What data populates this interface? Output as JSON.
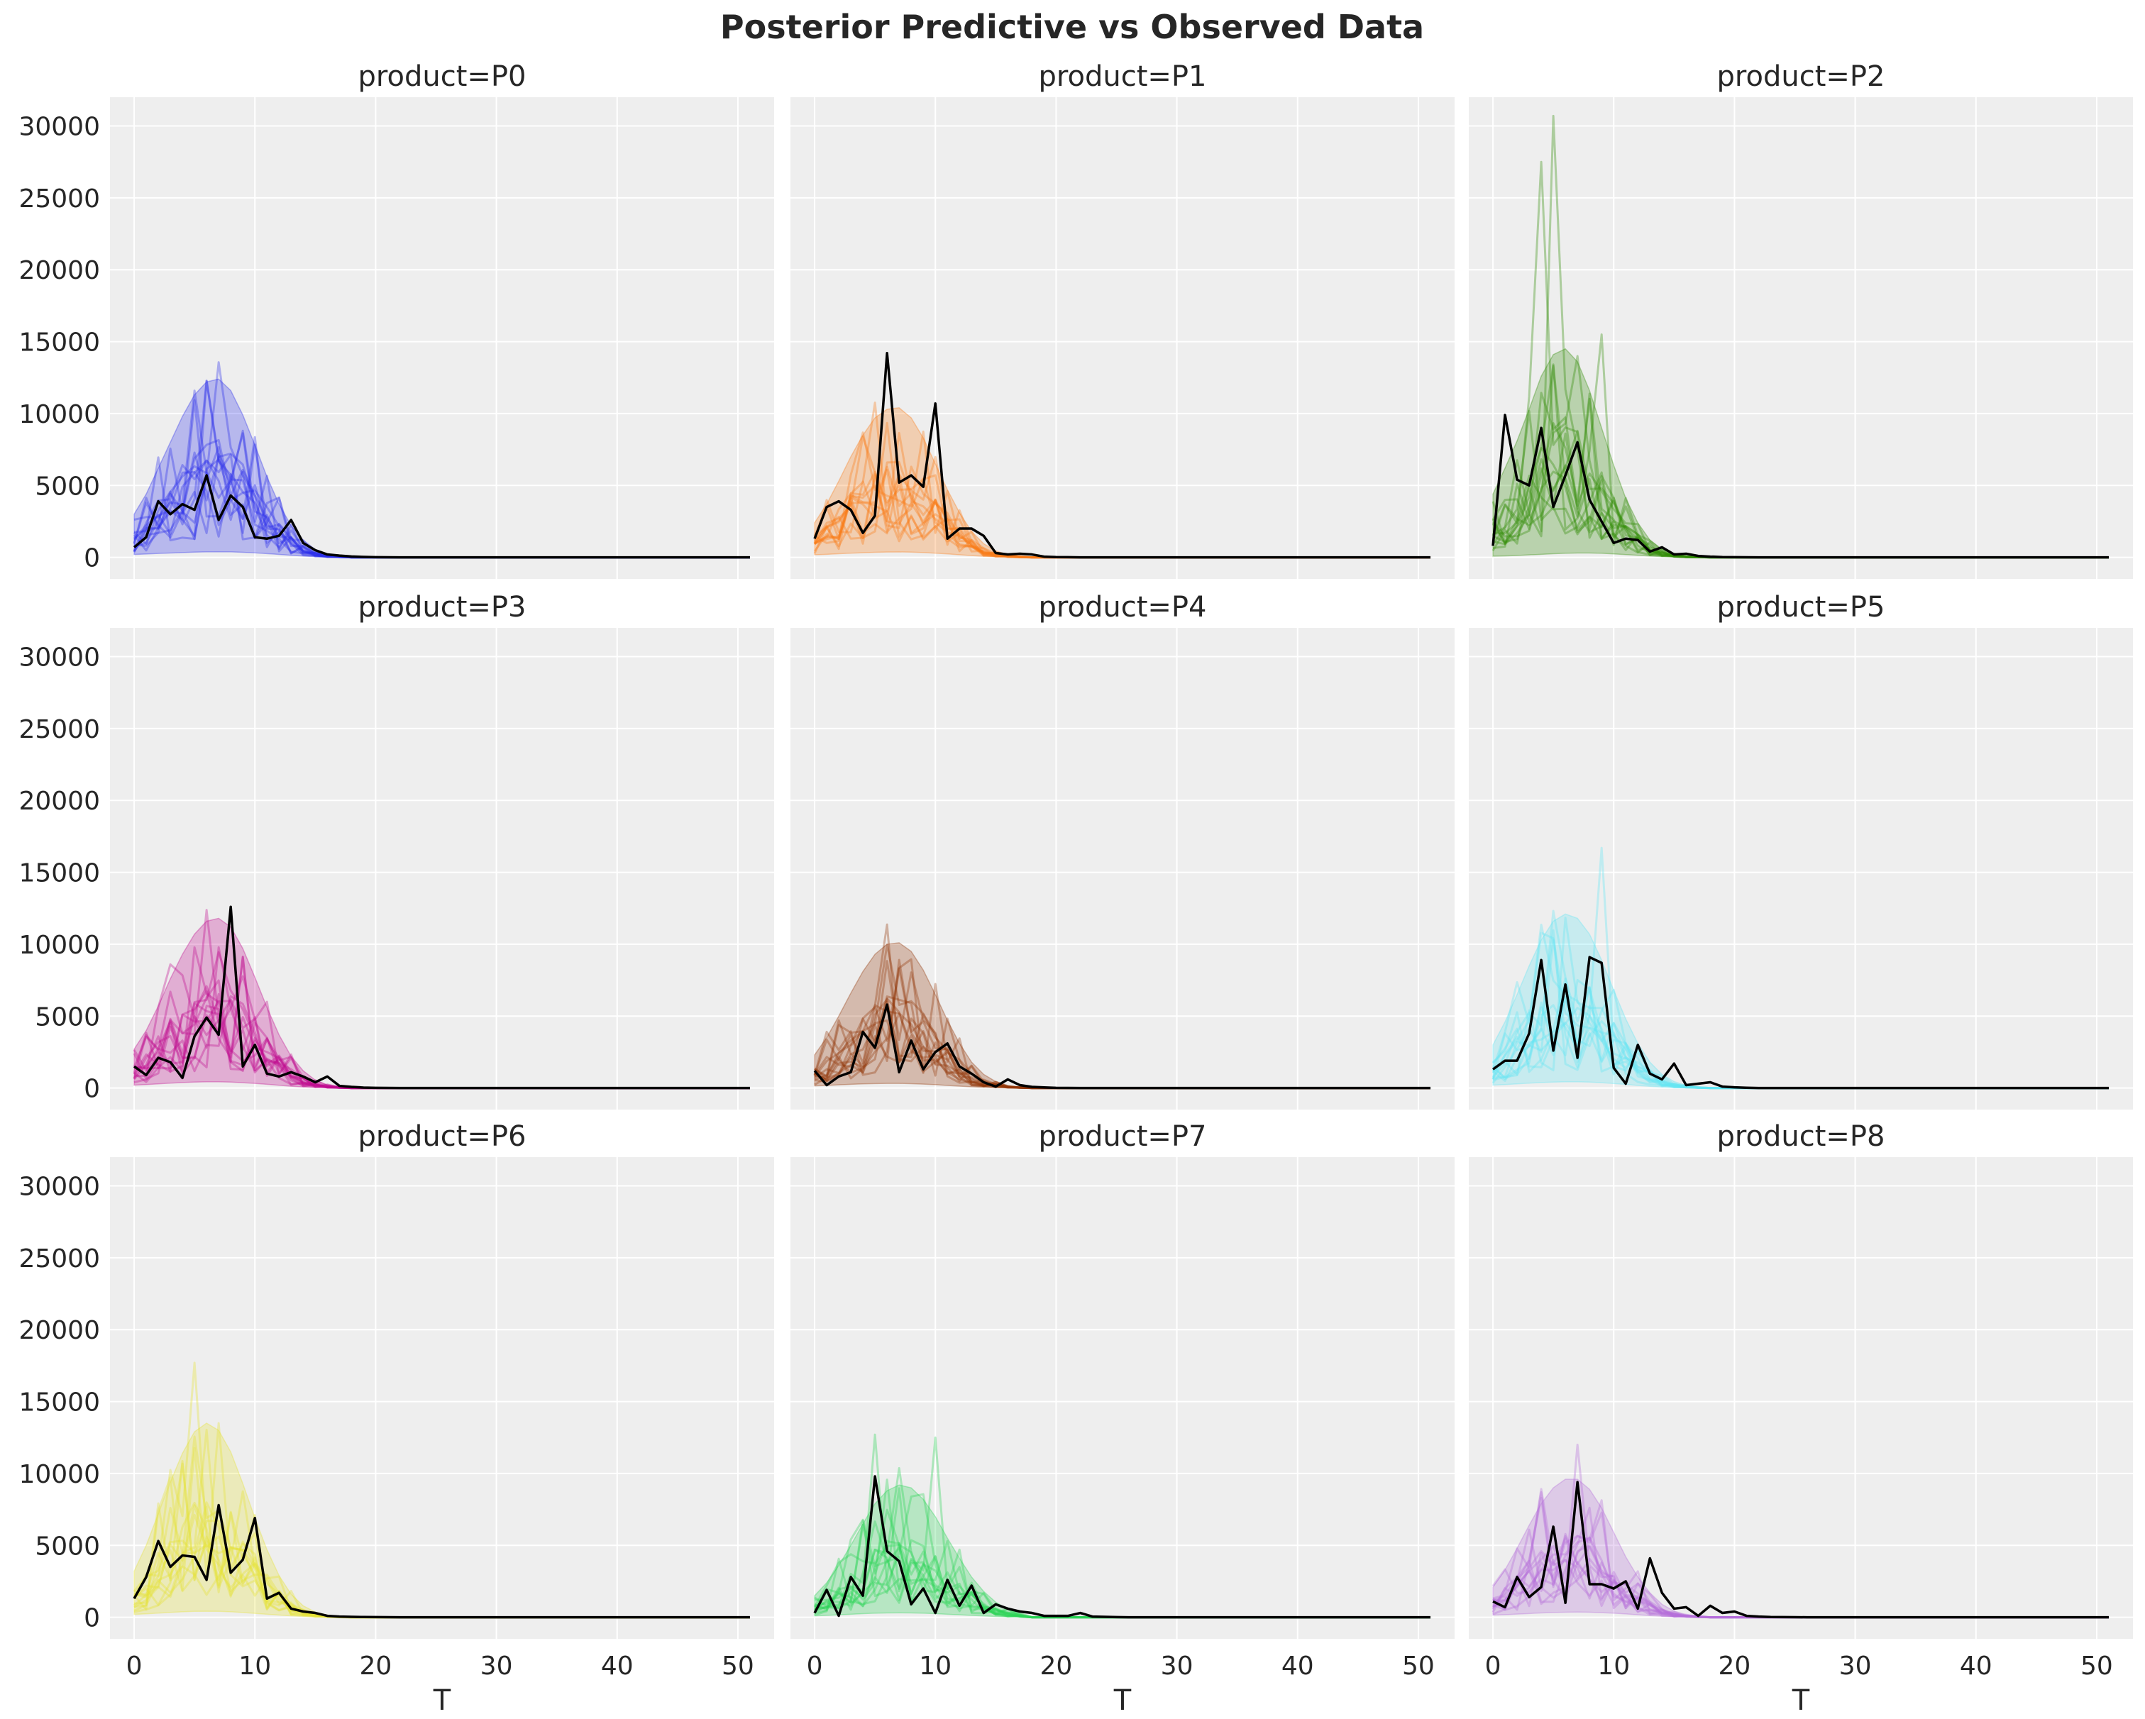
{
  "figure": {
    "title": "Posterior Predictive vs Observed Data",
    "background": "#ffffff",
    "panel_background": "#eeeeee",
    "grid_color": "#ffffff"
  },
  "chart_data": {
    "type": "line",
    "layout": "3x3 facets, shared axes",
    "xlabel": "T",
    "ylabel": "",
    "xlim": [
      -2,
      53
    ],
    "ylim": [
      -1500,
      32000
    ],
    "x_ticks": [
      0,
      10,
      20,
      30,
      40,
      50
    ],
    "y_ticks": [
      0,
      5000,
      10000,
      15000,
      20000,
      25000,
      30000
    ],
    "grid": true,
    "observed_line_color": "#000000",
    "panels": [
      {
        "title": "product=P0",
        "color": "#2a2eec",
        "band_lower": [
          200,
          230,
          270,
          300,
          330,
          360,
          380,
          390,
          380,
          350,
          310,
          260,
          200,
          140,
          90,
          50,
          25,
          10
        ],
        "band_upper": [
          3000,
          4400,
          6200,
          8000,
          9800,
          11300,
          12200,
          12400,
          11600,
          9900,
          7800,
          5600,
          3700,
          2200,
          1200,
          550,
          220,
          80
        ],
        "band_mid": [
          1200,
          1850,
          2600,
          3400,
          4200,
          4850,
          5250,
          5300,
          5000,
          4300,
          3400,
          2450,
          1600,
          960,
          520,
          250,
          100,
          40
        ],
        "observed": [
          700,
          1400,
          3900,
          3000,
          3700,
          3300,
          5700,
          2600,
          4300,
          3500,
          1400,
          1300,
          1500,
          2600,
          1000,
          500,
          200,
          120,
          60,
          30,
          10,
          5
        ]
      },
      {
        "title": "product=P1",
        "color": "#fa7c17",
        "band_lower": [
          180,
          210,
          250,
          290,
          320,
          350,
          370,
          375,
          360,
          330,
          290,
          240,
          180,
          120,
          75,
          40,
          18,
          8
        ],
        "band_upper": [
          2400,
          3700,
          5300,
          7000,
          8500,
          9700,
          10300,
          10400,
          9700,
          8300,
          6500,
          4700,
          3100,
          1800,
          950,
          450,
          180,
          70
        ],
        "band_mid": [
          1000,
          1550,
          2200,
          2900,
          3500,
          4000,
          4300,
          4350,
          4100,
          3550,
          2850,
          2050,
          1350,
          800,
          420,
          200,
          80,
          30
        ],
        "observed": [
          1300,
          3500,
          3900,
          3300,
          1700,
          2900,
          14200,
          5200,
          5700,
          4900,
          10700,
          1300,
          2000,
          2000,
          1500,
          300,
          200,
          250,
          200,
          50,
          20,
          10
        ]
      },
      {
        "title": "product=P2",
        "color": "#328c06",
        "band_lower": [
          80,
          100,
          130,
          170,
          210,
          250,
          280,
          300,
          300,
          280,
          240,
          190,
          140,
          90,
          50,
          25,
          10,
          5
        ],
        "band_upper": [
          4400,
          6200,
          8100,
          10300,
          12600,
          14100,
          14500,
          13600,
          11600,
          9000,
          6400,
          4100,
          2400,
          1200,
          560,
          230,
          80,
          30
        ],
        "band_mid": [
          1800,
          2600,
          3500,
          4500,
          5500,
          6100,
          6300,
          5900,
          5000,
          3900,
          2800,
          1800,
          1050,
          550,
          260,
          110,
          40,
          15
        ],
        "spikes": [
          [
            4,
            27500
          ],
          [
            5,
            30700
          ],
          [
            9,
            15500
          ],
          [
            7,
            14000
          ]
        ],
        "observed": [
          800,
          9900,
          5400,
          5000,
          9000,
          3500,
          5700,
          8000,
          4000,
          2500,
          1000,
          1300,
          1200,
          400,
          700,
          200,
          250,
          100,
          50,
          20,
          10,
          5
        ]
      },
      {
        "title": "product=P3",
        "color": "#c10c90",
        "band_lower": [
          200,
          240,
          290,
          340,
          380,
          410,
          430,
          430,
          410,
          370,
          320,
          260,
          190,
          120,
          70,
          35,
          15,
          6
        ],
        "band_upper": [
          2700,
          4000,
          5700,
          7600,
          9300,
          10700,
          11600,
          11800,
          11200,
          9700,
          7700,
          5600,
          3700,
          2200,
          1200,
          550,
          220,
          80
        ],
        "band_mid": [
          1100,
          1650,
          2350,
          3150,
          3850,
          4450,
          4800,
          4900,
          4650,
          4000,
          3200,
          2300,
          1500,
          900,
          480,
          220,
          90,
          30
        ],
        "observed": [
          1500,
          900,
          2100,
          1800,
          700,
          3600,
          4900,
          3700,
          12600,
          1500,
          3000,
          1000,
          800,
          1100,
          800,
          400,
          800,
          150,
          80,
          30,
          10,
          5
        ]
      },
      {
        "title": "product=P4",
        "color": "#933708",
        "band_lower": [
          150,
          180,
          220,
          260,
          290,
          310,
          320,
          320,
          300,
          270,
          230,
          180,
          130,
          85,
          50,
          25,
          10,
          4
        ],
        "band_upper": [
          2300,
          3500,
          5000,
          6600,
          8100,
          9300,
          10000,
          10100,
          9500,
          8200,
          6500,
          4700,
          3100,
          1800,
          950,
          450,
          180,
          70
        ],
        "band_mid": [
          900,
          1400,
          2000,
          2700,
          3300,
          3850,
          4150,
          4200,
          3950,
          3400,
          2700,
          1950,
          1300,
          750,
          400,
          190,
          75,
          30
        ],
        "observed": [
          1200,
          200,
          800,
          1100,
          3900,
          2800,
          5800,
          1100,
          3300,
          1300,
          2500,
          3100,
          1500,
          1000,
          400,
          100,
          600,
          200,
          80,
          40,
          10,
          5
        ]
      },
      {
        "title": "product=P5",
        "color": "#65e5f3",
        "band_lower": [
          200,
          240,
          290,
          340,
          380,
          410,
          430,
          430,
          410,
          370,
          310,
          250,
          180,
          115,
          65,
          32,
          13,
          5
        ],
        "band_upper": [
          3000,
          4600,
          6500,
          8500,
          10300,
          11600,
          12100,
          11800,
          10700,
          8900,
          6800,
          4800,
          3100,
          1800,
          950,
          450,
          180,
          70
        ],
        "band_mid": [
          1250,
          1900,
          2700,
          3550,
          4300,
          4850,
          5100,
          5000,
          4550,
          3800,
          2950,
          2100,
          1350,
          800,
          420,
          200,
          80,
          30
        ],
        "spikes": [
          [
            9,
            16700
          ]
        ],
        "observed": [
          1300,
          1900,
          1900,
          3800,
          8900,
          2600,
          7200,
          2100,
          9100,
          8700,
          1400,
          300,
          3000,
          1000,
          600,
          1700,
          200,
          300,
          400,
          100,
          50,
          20
        ]
      },
      {
        "title": "product=P6",
        "color": "#e6e135",
        "band_lower": [
          200,
          240,
          290,
          340,
          380,
          410,
          420,
          410,
          380,
          330,
          270,
          210,
          150,
          95,
          55,
          28,
          12,
          5
        ],
        "band_upper": [
          3200,
          5000,
          7200,
          9400,
          11400,
          12900,
          13500,
          13000,
          11500,
          9300,
          6900,
          4700,
          2900,
          1600,
          800,
          360,
          140,
          50
        ],
        "band_mid": [
          1300,
          2050,
          2950,
          3850,
          4700,
          5300,
          5550,
          5350,
          4750,
          3850,
          2850,
          1950,
          1200,
          660,
          330,
          150,
          60,
          20
        ],
        "spikes": [
          [
            5,
            17700
          ],
          [
            7,
            13500
          ]
        ],
        "observed": [
          1300,
          2800,
          5300,
          3500,
          4300,
          4200,
          2600,
          7800,
          3100,
          4000,
          6900,
          1300,
          1700,
          600,
          400,
          300,
          100,
          50,
          30,
          15,
          8,
          4
        ]
      },
      {
        "title": "product=P7",
        "color": "#2ad356",
        "band_lower": [
          100,
          130,
          170,
          210,
          250,
          280,
          300,
          310,
          300,
          280,
          250,
          210,
          170,
          130,
          90,
          55,
          30,
          15
        ],
        "band_upper": [
          1500,
          2400,
          3600,
          5000,
          6500,
          7900,
          8800,
          9200,
          9000,
          8200,
          7000,
          5500,
          4100,
          2800,
          1800,
          1050,
          550,
          260
        ],
        "band_mid": [
          600,
          950,
          1450,
          2000,
          2600,
          3150,
          3550,
          3700,
          3600,
          3300,
          2800,
          2200,
          1650,
          1150,
          720,
          420,
          220,
          100
        ],
        "spikes": [
          [
            5,
            12700
          ],
          [
            10,
            12500
          ]
        ],
        "observed": [
          300,
          1900,
          100,
          2800,
          1500,
          9800,
          4600,
          3900,
          900,
          2000,
          300,
          2600,
          800,
          2200,
          300,
          900,
          600,
          400,
          300,
          100,
          100,
          100,
          300,
          50,
          30,
          10
        ]
      },
      {
        "title": "product=P8",
        "color": "#b56ed9",
        "band_lower": [
          150,
          180,
          220,
          260,
          300,
          330,
          350,
          360,
          350,
          320,
          280,
          230,
          170,
          115,
          70,
          38,
          18,
          8
        ],
        "band_upper": [
          2100,
          3300,
          4800,
          6400,
          7900,
          9000,
          9600,
          9600,
          8900,
          7600,
          5900,
          4200,
          2800,
          1700,
          900,
          430,
          180,
          70
        ],
        "band_mid": [
          850,
          1350,
          1950,
          2600,
          3200,
          3650,
          3900,
          3900,
          3600,
          3100,
          2400,
          1700,
          1150,
          700,
          380,
          180,
          75,
          30
        ],
        "spikes": [
          [
            7,
            12000
          ]
        ],
        "observed": [
          1100,
          700,
          2800,
          1400,
          2100,
          6300,
          1000,
          9400,
          2300,
          2300,
          2000,
          2500,
          600,
          4100,
          1700,
          600,
          700,
          100,
          800,
          300,
          400,
          100,
          50,
          20,
          10,
          5
        ]
      }
    ]
  }
}
